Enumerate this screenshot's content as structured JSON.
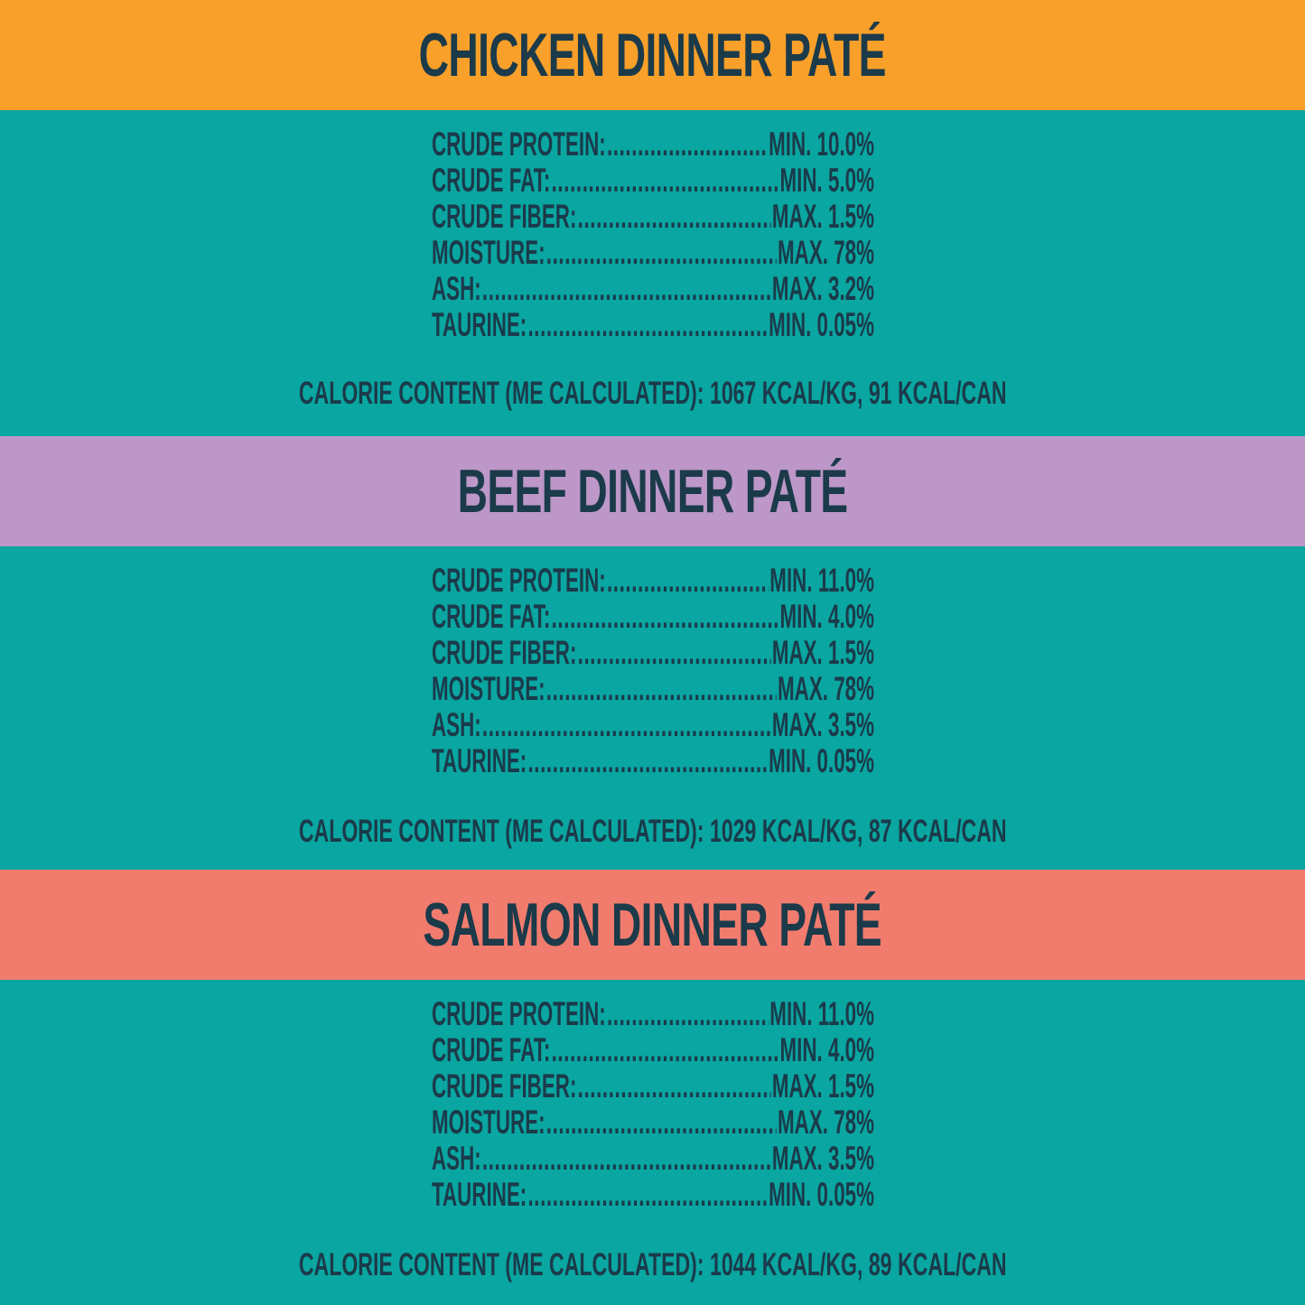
{
  "colors": {
    "teal": "#0aa6a1",
    "text": "#1b3a4a",
    "chicken": "#f9a02a",
    "beef": "#bc97c7",
    "salmon": "#f17c6e"
  },
  "sections": [
    {
      "title": "CHICKEN DINNER PATÉ",
      "rows": [
        {
          "label": "CRUDE PROTEIN:",
          "value": "MIN. 10.0%"
        },
        {
          "label": "CRUDE FAT:",
          "value": "MIN. 5.0%"
        },
        {
          "label": "CRUDE FIBER:",
          "value": "MAX. 1.5%"
        },
        {
          "label": "MOISTURE:",
          "value": "MAX. 78%"
        },
        {
          "label": "ASH:",
          "value": "MAX. 3.2%"
        },
        {
          "label": "TAURINE:",
          "value": "MIN. 0.05%"
        }
      ],
      "calorie": "CALORIE CONTENT (ME CALCULATED): 1067 KCAL/KG, 91 KCAL/CAN"
    },
    {
      "title": "BEEF DINNER PATÉ",
      "rows": [
        {
          "label": "CRUDE PROTEIN:",
          "value": "MIN. 11.0%"
        },
        {
          "label": "CRUDE FAT:",
          "value": "MIN. 4.0%"
        },
        {
          "label": "CRUDE FIBER:",
          "value": "MAX. 1.5%"
        },
        {
          "label": "MOISTURE:",
          "value": "MAX. 78%"
        },
        {
          "label": "ASH:",
          "value": "MAX. 3.5%"
        },
        {
          "label": "TAURINE:",
          "value": "MIN. 0.05%"
        }
      ],
      "calorie": "CALORIE CONTENT (ME CALCULATED): 1029 KCAL/KG, 87 KCAL/CAN"
    },
    {
      "title": "SALMON DINNER PATÉ",
      "rows": [
        {
          "label": "CRUDE PROTEIN:",
          "value": "MIN. 11.0%"
        },
        {
          "label": "CRUDE FAT:",
          "value": "MIN. 4.0%"
        },
        {
          "label": "CRUDE FIBER:",
          "value": "MAX. 1.5%"
        },
        {
          "label": "MOISTURE:",
          "value": "MAX. 78%"
        },
        {
          "label": "ASH:",
          "value": "MAX. 3.5%"
        },
        {
          "label": "TAURINE:",
          "value": "MIN. 0.05%"
        }
      ],
      "calorie": "CALORIE CONTENT (ME CALCULATED): 1044 KCAL/KG, 89 KCAL/CAN"
    }
  ]
}
